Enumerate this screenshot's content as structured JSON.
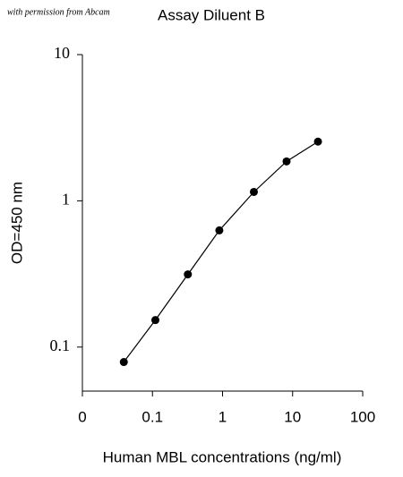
{
  "chart_data": {
    "type": "line",
    "watermark": "with permission from Abcam",
    "title": "Assay Diluent B",
    "x_label": "Human MBL concentrations (ng/ml)",
    "y_label": "OD=450 nm",
    "x_scale": "log",
    "y_scale": "log",
    "x": [
      0.039,
      0.11,
      0.32,
      0.9,
      2.8,
      8.2,
      23
    ],
    "series": [
      {
        "name": "Assay Diluent B",
        "color": "#000000",
        "values": [
          0.079,
          0.153,
          0.314,
          0.628,
          1.15,
          1.86,
          2.54
        ]
      }
    ],
    "xlim": [
      0.01,
      100
    ],
    "xticks": [
      {
        "value": 0.01,
        "label": "0"
      },
      0.1,
      1,
      10,
      100
    ],
    "ylim": [
      0.05,
      10
    ],
    "yticks": [
      0.1,
      1,
      10
    ]
  }
}
